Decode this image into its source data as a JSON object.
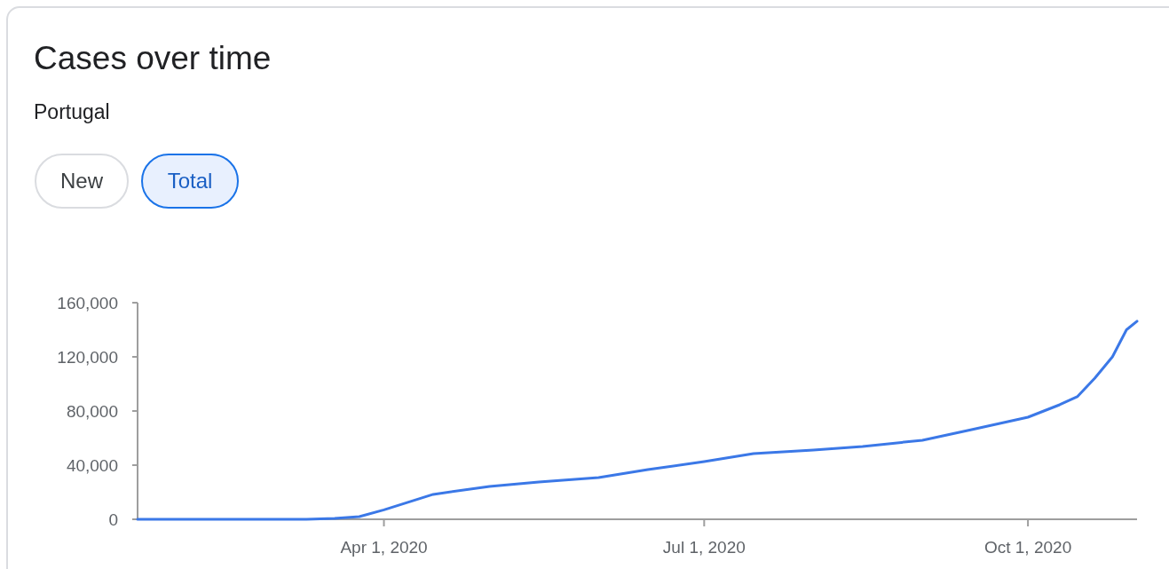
{
  "chart_data": {
    "type": "line",
    "title": "Cases over time",
    "subtitle": "Portugal",
    "annotations": [
      "New",
      "Total"
    ],
    "x": [
      "2020-01-22",
      "2020-03-02",
      "2020-03-10",
      "2020-03-18",
      "2020-03-25",
      "2020-04-01",
      "2020-04-15",
      "2020-05-01",
      "2020-05-15",
      "2020-06-01",
      "2020-06-15",
      "2020-07-01",
      "2020-07-15",
      "2020-08-01",
      "2020-08-15",
      "2020-09-01",
      "2020-09-15",
      "2020-10-01",
      "2020-10-10",
      "2020-10-15",
      "2020-10-20",
      "2020-10-25",
      "2020-10-29",
      "2020-11-01"
    ],
    "series": [
      {
        "color": "#3b78e7",
        "values": [
          0,
          0,
          0,
          600,
          2000,
          7000,
          18400,
          24300,
          27500,
          30800,
          36700,
          42600,
          48500,
          51100,
          53800,
          58400,
          66200,
          75400,
          84600,
          90500,
          104300,
          120000,
          140000,
          146300
        ]
      }
    ],
    "xlim": [
      "2020-01-22",
      "2020-11-01"
    ],
    "xticks": [
      {
        "value": "2020-04-01",
        "label": "Apr 1, 2020"
      },
      {
        "value": "2020-07-01",
        "label": "Jul 1, 2020"
      },
      {
        "value": "2020-10-01",
        "label": "Oct 1, 2020"
      }
    ],
    "ylim": [
      0,
      160000
    ],
    "yticks": [
      {
        "value": 0,
        "label": "0"
      },
      {
        "value": 40000,
        "label": "40,000"
      },
      {
        "value": 80000,
        "label": "80,000"
      },
      {
        "value": 120000,
        "label": "120,000"
      },
      {
        "value": 160000,
        "label": "160,000"
      }
    ],
    "grid": false,
    "marker": "none",
    "line_style": "solid"
  }
}
